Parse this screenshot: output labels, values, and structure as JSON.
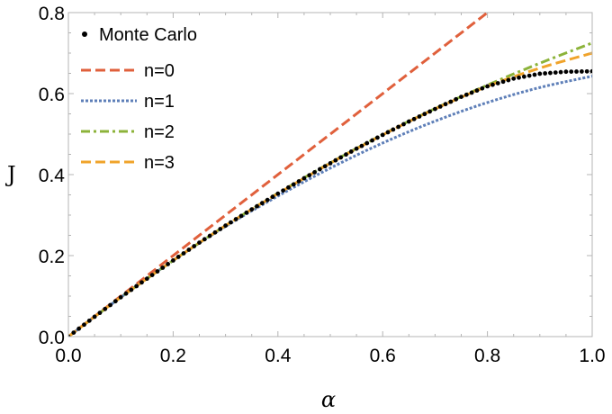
{
  "chart_data": {
    "type": "line",
    "title": "",
    "xlabel": "α",
    "ylabel": "J",
    "xlim": [
      0.0,
      1.0
    ],
    "ylim": [
      0.0,
      0.8
    ],
    "x_ticks": [
      "0.0",
      "0.2",
      "0.4",
      "0.6",
      "0.8",
      "1.0"
    ],
    "y_ticks": [
      "0.0",
      "0.2",
      "0.4",
      "0.6",
      "0.8"
    ],
    "x_tick_values": [
      0.0,
      0.2,
      0.4,
      0.6,
      0.8,
      1.0
    ],
    "y_tick_values": [
      0.0,
      0.2,
      0.4,
      0.6,
      0.8
    ],
    "grid": false,
    "legend_position": "top-left",
    "series": [
      {
        "name": "Monte Carlo",
        "style": "points",
        "color": "#000000",
        "x": [
          0.0,
          0.05,
          0.1,
          0.15,
          0.2,
          0.25,
          0.3,
          0.35,
          0.4,
          0.45,
          0.5,
          0.55,
          0.6,
          0.65,
          0.7,
          0.75,
          0.8,
          0.85,
          0.9,
          0.95,
          1.0
        ],
        "y": [
          0.0,
          0.049,
          0.097,
          0.143,
          0.188,
          0.232,
          0.274,
          0.314,
          0.353,
          0.391,
          0.428,
          0.464,
          0.498,
          0.531,
          0.562,
          0.592,
          0.618,
          0.637,
          0.649,
          0.654,
          0.655
        ]
      },
      {
        "name": "n=0",
        "style": "dashed",
        "color": "#E0603C",
        "x": [
          0.0,
          0.8
        ],
        "y": [
          0.0,
          0.8
        ]
      },
      {
        "name": "n=1",
        "style": "dotted",
        "color": "#5E7FB8",
        "x": [
          0.0,
          0.1,
          0.2,
          0.3,
          0.4,
          0.5,
          0.6,
          0.7,
          0.8,
          0.9,
          1.0
        ],
        "y": [
          0.0,
          0.097,
          0.188,
          0.272,
          0.347,
          0.416,
          0.478,
          0.532,
          0.578,
          0.615,
          0.643
        ]
      },
      {
        "name": "n=2",
        "style": "dash-dot",
        "color": "#8CB33A",
        "x": [
          0.0,
          0.1,
          0.2,
          0.3,
          0.4,
          0.5,
          0.6,
          0.7,
          0.8,
          0.9,
          1.0
        ],
        "y": [
          0.0,
          0.097,
          0.188,
          0.274,
          0.354,
          0.429,
          0.499,
          0.563,
          0.621,
          0.675,
          0.725
        ]
      },
      {
        "name": "n=3",
        "style": "dashed",
        "color": "#F0A32A",
        "x": [
          0.0,
          0.1,
          0.2,
          0.3,
          0.4,
          0.5,
          0.6,
          0.7,
          0.8,
          0.9,
          1.0
        ],
        "y": [
          0.0,
          0.097,
          0.188,
          0.274,
          0.353,
          0.428,
          0.498,
          0.562,
          0.618,
          0.663,
          0.7
        ]
      }
    ]
  }
}
